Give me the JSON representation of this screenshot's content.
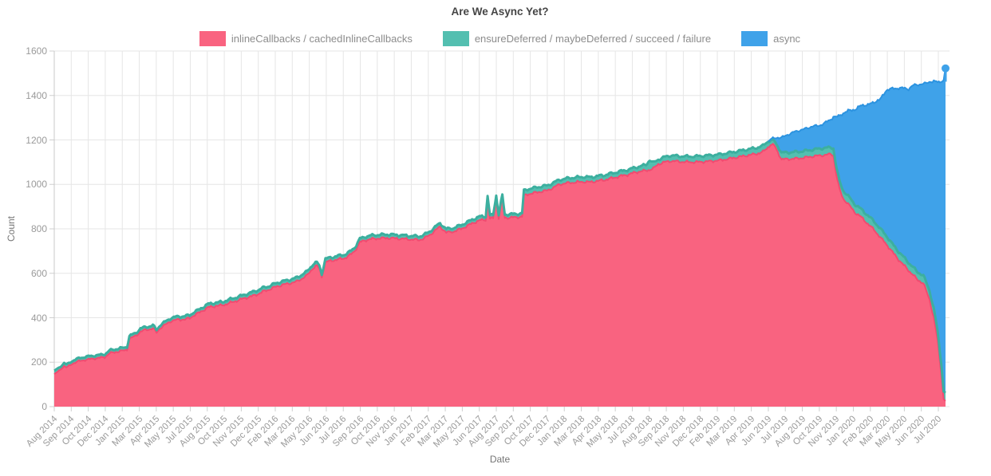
{
  "title": "Are We Async Yet?",
  "axes": {
    "xlabel": "Date",
    "ylabel": "Count"
  },
  "legend": {
    "items": [
      {
        "label": "inlineCallbacks / cachedInlineCallbacks",
        "color": "#F96380"
      },
      {
        "label": "ensureDeferred / maybeDeferred / succeed / failure",
        "color": "#53BFB0"
      },
      {
        "label": "async",
        "color": "#3FA2E9"
      }
    ]
  },
  "chart_data": {
    "type": "area",
    "stacked": true,
    "title": "Are We Async Yet?",
    "xlabel": "Date",
    "ylabel": "Count",
    "grid": true,
    "legend_position": "top",
    "ylim": [
      0,
      1600
    ],
    "yticks": [
      0,
      200,
      400,
      600,
      800,
      1000,
      1200,
      1400,
      1600
    ],
    "x_unit": "months since Aug 2014",
    "xlim": [
      0,
      72.3
    ],
    "xtick_labels": [
      "Aug 2014",
      "Sep 2014",
      "Oct 2014",
      "Dec 2014",
      "Jan 2015",
      "Mar 2015",
      "Apr 2015",
      "May 2015",
      "Jul 2015",
      "Aug 2015",
      "Oct 2015",
      "Nov 2015",
      "Dec 2015",
      "Feb 2016",
      "Mar 2016",
      "May 2016",
      "Jun 2016",
      "Jul 2016",
      "Sep 2016",
      "Oct 2016",
      "Nov 2016",
      "Jan 2017",
      "Feb 2017",
      "Mar 2017",
      "May 2017",
      "Jun 2017",
      "Aug 2017",
      "Sep 2017",
      "Oct 2017",
      "Dec 2017",
      "Jan 2018",
      "Mar 2018",
      "Apr 2018",
      "May 2018",
      "Jul 2018",
      "Aug 2018",
      "Sep 2018",
      "Nov 2018",
      "Dec 2018",
      "Feb 2019",
      "Mar 2019",
      "Apr 2019",
      "Jun 2019",
      "Jul 2019",
      "Aug 2019",
      "Oct 2019",
      "Nov 2019",
      "Jan 2020",
      "Feb 2020",
      "Mar 2020",
      "May 2020",
      "Jun 2020",
      "Jul 2020"
    ],
    "x": [
      0,
      0.4,
      0.8,
      1.0,
      1.5,
      2.0,
      2.6,
      3.0,
      3.6,
      4.1,
      4.5,
      5.0,
      5.6,
      5.9,
      6.1,
      6.6,
      7.0,
      7.5,
      8.0,
      8.3,
      8.6,
      9.0,
      9.5,
      10.0,
      10.6,
      11.0,
      11.3,
      11.7,
      12.0,
      12.5,
      13.0,
      13.6,
      14.0,
      14.5,
      15.0,
      15.5,
      16.0,
      16.5,
      17.0,
      17.5,
      18.0,
      18.6,
      19.0,
      19.6,
      20.0,
      20.5,
      21.0,
      21.3,
      21.5,
      21.7,
      22.0,
      22.5,
      23.0,
      23.6,
      24.0,
      24.4,
      24.8,
      25.2,
      25.6,
      26.0,
      27.0,
      28.0,
      29.0,
      29.6,
      30.0,
      30.5,
      31.0,
      31.3,
      31.8,
      32.4,
      33.0,
      33.5,
      34.0,
      34.5,
      35.0,
      35.15,
      35.35,
      35.6,
      35.85,
      36.05,
      36.35,
      36.55,
      37.0,
      37.5,
      37.95,
      38.1,
      38.5,
      39.0,
      39.5,
      40.0,
      40.5,
      41.0,
      41.5,
      42.0,
      43.0,
      43.5,
      44.0,
      44.6,
      45.0,
      45.5,
      46.0,
      46.5,
      47.0,
      47.5,
      48.0,
      48.3,
      48.6,
      49.0,
      49.5,
      50.0,
      50.6,
      51.0,
      52.0,
      53.0,
      54.0,
      55.0,
      56.0,
      57.0,
      57.5,
      57.8,
      58.1,
      58.4,
      58.7,
      59.0,
      59.5,
      60.0,
      60.5,
      61.0,
      61.5,
      62.0,
      62.5,
      63.0,
      63.2,
      63.45,
      63.7,
      64.0,
      64.5,
      65.0,
      65.5,
      66.0,
      66.5,
      67.0,
      67.5,
      68.0,
      68.5,
      69.0,
      69.3,
      69.7,
      70.0,
      70.5,
      71.0,
      71.35,
      71.65,
      71.95,
      72.15,
      72.3
    ],
    "series": [
      {
        "name": "inlineCallbacks / cachedInlineCallbacks",
        "color": "#F96380",
        "line_color": "#F14B70",
        "values": [
          145,
          162,
          183,
          176,
          194,
          205,
          211,
          215,
          219,
          223,
          240,
          246,
          252,
          256,
          305,
          318,
          338,
          346,
          352,
          333,
          354,
          368,
          386,
          391,
          393,
          398,
          410,
          421,
          431,
          447,
          452,
          456,
          462,
          471,
          480,
          489,
          496,
          506,
          519,
          528,
          540,
          549,
          554,
          561,
          573,
          590,
          624,
          634,
          620,
          584,
          650,
          657,
          662,
          669,
          682,
          702,
          740,
          748,
          753,
          756,
          759,
          756,
          752,
          750,
          757,
          774,
          797,
          810,
          783,
          788,
          800,
          813,
          827,
          838,
          841,
          934,
          845,
          847,
          938,
          848,
          939,
          849,
          851,
          852,
          855,
          949,
          957,
          962,
          968,
          972,
          986,
          1000,
          1005,
          1008,
          1012,
          1010,
          1015,
          1019,
          1025,
          1031,
          1038,
          1043,
          1052,
          1058,
          1062,
          1066,
          1071,
          1091,
          1100,
          1105,
          1103,
          1101,
          1100,
          1103,
          1108,
          1118,
          1128,
          1138,
          1146,
          1162,
          1178,
          1176,
          1145,
          1112,
          1114,
          1115,
          1118,
          1121,
          1126,
          1129,
          1132,
          1136,
          1131,
          1040,
          978,
          936,
          905,
          871,
          851,
          822,
          796,
          762,
          731,
          695,
          661,
          631,
          613,
          591,
          571,
          556,
          481,
          400,
          300,
          150,
          32,
          26
        ]
      },
      {
        "name": "ensureDeferred / maybeDeferred / succeed / failure",
        "color": "#53BFB0",
        "line_color": "#3CAF9F",
        "values": [
          15,
          14,
          13,
          13,
          13,
          13,
          14,
          13,
          13,
          13,
          13,
          13,
          13,
          13,
          13,
          13,
          14,
          13,
          14,
          12,
          14,
          14,
          14,
          14,
          14,
          14,
          14,
          14,
          15,
          15,
          15,
          15,
          16,
          16,
          16,
          16,
          18,
          18,
          17,
          16,
          16,
          16,
          16,
          18,
          18,
          18,
          17,
          15,
          15,
          13,
          15,
          15,
          16,
          16,
          16,
          16,
          16,
          16,
          16,
          16,
          16,
          16,
          16,
          16,
          16,
          16,
          16,
          16,
          16,
          16,
          17,
          17,
          17,
          17,
          15,
          14,
          15,
          15,
          13,
          15,
          13,
          15,
          15,
          15,
          15,
          23,
          23,
          23,
          23,
          23,
          22,
          21,
          21,
          22,
          22,
          22,
          22,
          22,
          22,
          22,
          22,
          22,
          22,
          23,
          26,
          44,
          26,
          21,
          23,
          25,
          25,
          25,
          26,
          27,
          27,
          27,
          27,
          27,
          28,
          28,
          20,
          20,
          26,
          30,
          30,
          30,
          30,
          30,
          30,
          31,
          32,
          30,
          32,
          35,
          36,
          36,
          36,
          36,
          36,
          38,
          38,
          39,
          38,
          36,
          36,
          36,
          35,
          35,
          35,
          35,
          41,
          41,
          41,
          46,
          36,
          36
        ]
      },
      {
        "name": "async",
        "color": "#3FA2E9",
        "line_color": "#2C93E0",
        "values": [
          0,
          0,
          0,
          0,
          0,
          0,
          0,
          0,
          0,
          0,
          0,
          0,
          0,
          0,
          0,
          0,
          0,
          0,
          0,
          0,
          0,
          0,
          0,
          0,
          0,
          0,
          0,
          0,
          0,
          0,
          0,
          0,
          0,
          0,
          0,
          0,
          0,
          0,
          0,
          0,
          0,
          0,
          0,
          0,
          0,
          0,
          0,
          0,
          0,
          0,
          0,
          0,
          0,
          0,
          0,
          0,
          0,
          0,
          0,
          0,
          0,
          0,
          0,
          0,
          0,
          0,
          0,
          0,
          0,
          0,
          0,
          0,
          0,
          0,
          0,
          0,
          0,
          0,
          0,
          0,
          0,
          0,
          0,
          0,
          0,
          0,
          0,
          0,
          0,
          0,
          0,
          0,
          0,
          0,
          0,
          0,
          0,
          0,
          0,
          0,
          0,
          0,
          0,
          0,
          0,
          0,
          0,
          0,
          0,
          0,
          0,
          0,
          0,
          0,
          0,
          0,
          0,
          0,
          0,
          0,
          4,
          12,
          40,
          68,
          80,
          90,
          96,
          100,
          106,
          103,
          112,
          126,
          142,
          228,
          295,
          348,
          392,
          430,
          470,
          497,
          536,
          581,
          655,
          700,
          736,
          766,
          781,
          820,
          843,
          860,
          940,
          1021,
          1121,
          1266,
          1398,
          1460
        ]
      }
    ],
    "end_marker": {
      "x": 72.3,
      "total": 1522
    },
    "colors": {
      "grid": "#e6e6e6",
      "axis": "#c8c8c8",
      "tick": "#cfcfcf"
    }
  }
}
